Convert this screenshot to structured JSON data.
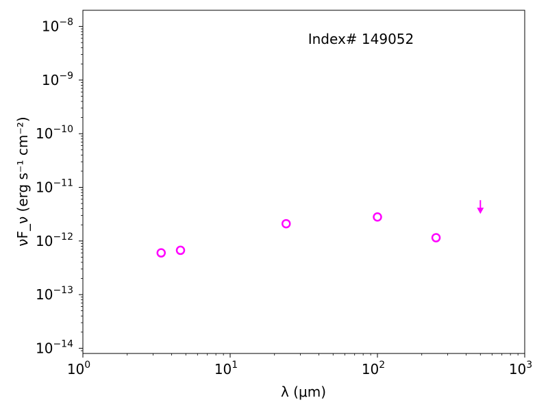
{
  "chart_data": {
    "type": "scatter",
    "title": "",
    "annotation": "Index# 149052",
    "xlabel": "λ (μm)",
    "ylabel": "νF_ν (erg s⁻¹ cm⁻²)",
    "xscale": "log",
    "yscale": "log",
    "xlim": [
      1,
      1000
    ],
    "ylim": [
      8e-15,
      2e-08
    ],
    "x_ticks": [
      {
        "value": 1,
        "base": "10",
        "exp": "0"
      },
      {
        "value": 10,
        "base": "10",
        "exp": "1"
      },
      {
        "value": 100,
        "base": "10",
        "exp": "2"
      },
      {
        "value": 1000,
        "base": "10",
        "exp": "3"
      }
    ],
    "y_ticks": [
      {
        "value": 1e-14,
        "base": "10",
        "exp": "−14"
      },
      {
        "value": 1e-13,
        "base": "10",
        "exp": "−13"
      },
      {
        "value": 1e-12,
        "base": "10",
        "exp": "−12"
      },
      {
        "value": 1e-11,
        "base": "10",
        "exp": "−11"
      },
      {
        "value": 1e-10,
        "base": "10",
        "exp": "−10"
      },
      {
        "value": 1e-09,
        "base": "10",
        "exp": "−9"
      },
      {
        "value": 1e-08,
        "base": "10",
        "exp": "−8"
      }
    ],
    "grid": false,
    "color": "#ff00ff",
    "points": [
      {
        "x": 3.4,
        "y": 6e-13
      },
      {
        "x": 4.6,
        "y": 6.7e-13
      },
      {
        "x": 24,
        "y": 2.1e-12
      },
      {
        "x": 100,
        "y": 2.8e-12
      },
      {
        "x": 250,
        "y": 1.15e-12
      }
    ],
    "upper_limits": [
      {
        "x": 500,
        "y": 3.5e-12
      }
    ]
  }
}
